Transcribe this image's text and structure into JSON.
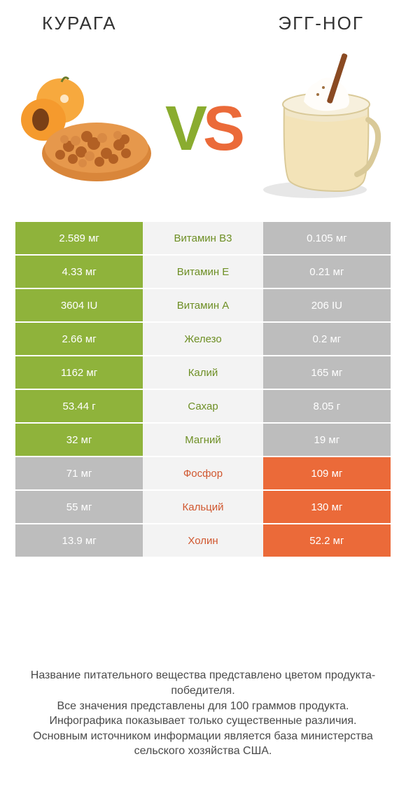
{
  "header": {
    "left": "КУРАГА",
    "right": "ЭГГ-НОГ"
  },
  "vs": {
    "v": "V",
    "s": "S"
  },
  "colors": {
    "green": "#8fb33b",
    "orange": "#eb6a39",
    "grey": "#bdbdbd",
    "mid_bg": "#f3f3f3",
    "mid_green": "#6e8f25",
    "mid_orange": "#d0572f"
  },
  "rows": [
    {
      "nutrient": "Витамин B3",
      "left": "2.589 мг",
      "right": "0.105 мг",
      "winner": "left"
    },
    {
      "nutrient": "Витамин E",
      "left": "4.33 мг",
      "right": "0.21 мг",
      "winner": "left"
    },
    {
      "nutrient": "Витамин A",
      "left": "3604 IU",
      "right": "206 IU",
      "winner": "left"
    },
    {
      "nutrient": "Железо",
      "left": "2.66 мг",
      "right": "0.2 мг",
      "winner": "left"
    },
    {
      "nutrient": "Калий",
      "left": "1162 мг",
      "right": "165 мг",
      "winner": "left"
    },
    {
      "nutrient": "Сахар",
      "left": "53.44 г",
      "right": "8.05 г",
      "winner": "left"
    },
    {
      "nutrient": "Магний",
      "left": "32 мг",
      "right": "19 мг",
      "winner": "left"
    },
    {
      "nutrient": "Фосфор",
      "left": "71 мг",
      "right": "109 мг",
      "winner": "right"
    },
    {
      "nutrient": "Кальций",
      "left": "55 мг",
      "right": "130 мг",
      "winner": "right"
    },
    {
      "nutrient": "Холин",
      "left": "13.9 мг",
      "right": "52.2 мг",
      "winner": "right"
    }
  ],
  "footnote": "Название питательного вещества представлено цветом продукта-победителя.\nВсе значения представлены для 100 граммов продукта.\nИнфографика показывает только существенные различия.\nОсновным источником информации является база министерства сельского хозяйства США."
}
